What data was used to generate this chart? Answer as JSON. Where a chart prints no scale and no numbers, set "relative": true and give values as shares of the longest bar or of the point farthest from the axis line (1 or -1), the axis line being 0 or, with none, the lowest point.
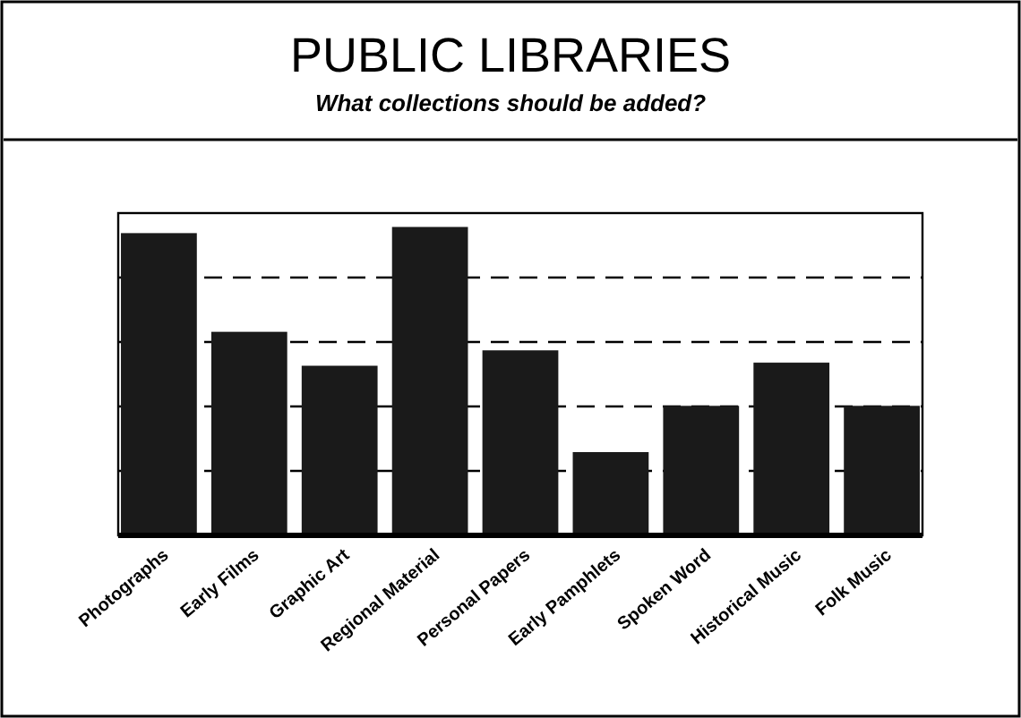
{
  "chart_data": {
    "type": "bar",
    "title": "PUBLIC LIBRARIES",
    "subtitle": "What collections should be added?",
    "categories": [
      "Photographs",
      "Early Films",
      "Graphic Art",
      "Regional Material",
      "Personal Papers",
      "Early Pamphlets",
      "Spoken Word",
      "Historical Music",
      "Folk Music"
    ],
    "values": [
      0.98,
      0.66,
      0.55,
      1,
      0.6,
      0.27,
      0.42,
      0.56,
      0.42
    ],
    "color": "#1a1a1a",
    "relative": true,
    "grid": true
  }
}
